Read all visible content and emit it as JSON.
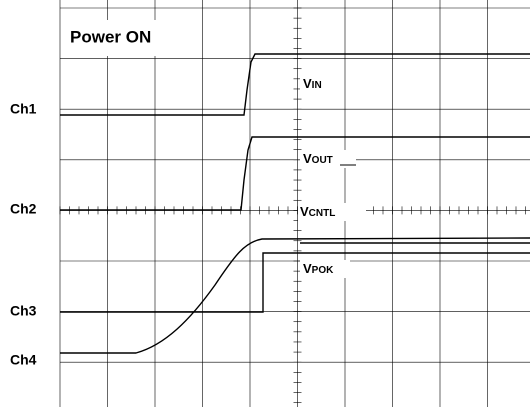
{
  "title": "Power ON",
  "channels": [
    "Ch1",
    "Ch2",
    "Ch3",
    "Ch4"
  ],
  "signals": [
    {
      "main": "V",
      "sub": "IN"
    },
    {
      "main": "V",
      "sub": "OUT"
    },
    {
      "main": "V",
      "sub": "CNTL"
    },
    {
      "main": "V",
      "sub": "POK"
    }
  ]
}
